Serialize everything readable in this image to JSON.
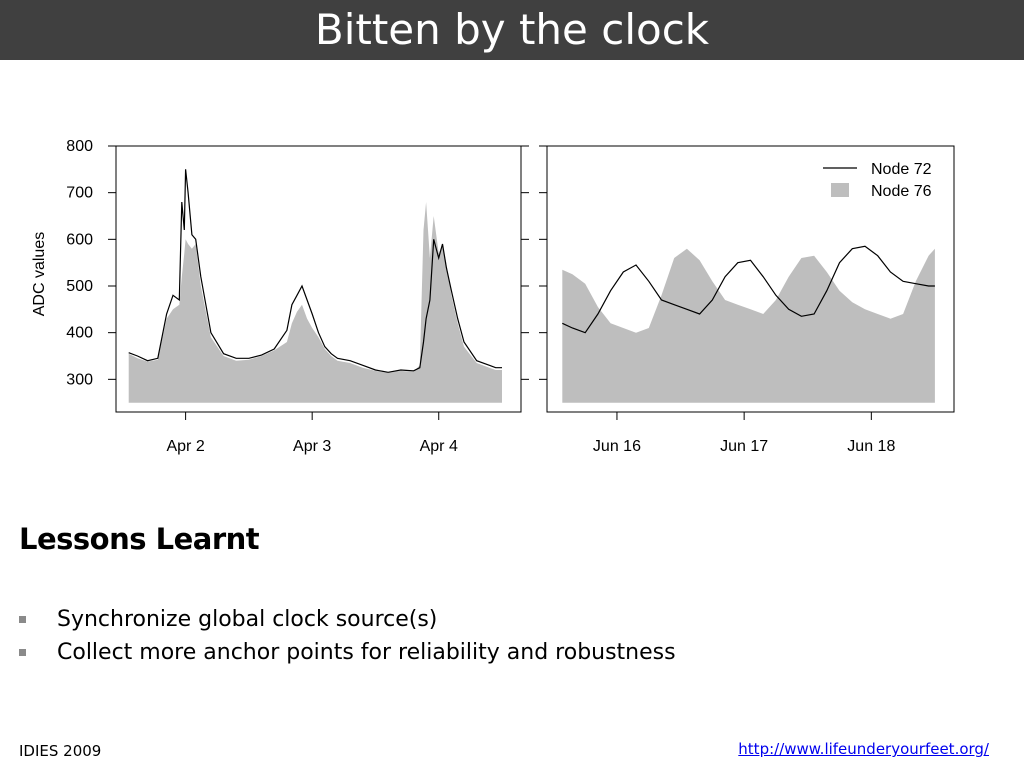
{
  "slide": {
    "title": "Bitten by the clock",
    "section_title": "Lessons Learnt",
    "bullets": [
      "Synchronize global clock source(s)",
      "Collect more anchor points for reliability and robustness"
    ],
    "footer_left": "IDIES 2009",
    "footer_link": "http://www.lifeunderyourfeet.org/"
  },
  "colors": {
    "title_bar": "#404040",
    "node72_line": "#000000",
    "node76_fill": "#bebebe"
  },
  "chart_data": [
    {
      "type": "area",
      "ylabel": "ADC values",
      "xlabel": "",
      "ylim": [
        230,
        800
      ],
      "yticks": [
        300,
        400,
        500,
        600,
        700,
        800
      ],
      "xlim": [
        0.45,
        3.65
      ],
      "xticks": [
        {
          "value": 1,
          "label": "Apr  2"
        },
        {
          "value": 2,
          "label": "Apr  3"
        },
        {
          "value": 3,
          "label": "Apr  4"
        }
      ],
      "series": [
        {
          "name": "Node 72",
          "style": "line",
          "x": [
            0.55,
            0.62,
            0.7,
            0.78,
            0.85,
            0.9,
            0.95,
            0.97,
            0.99,
            1.0,
            1.02,
            1.05,
            1.08,
            1.12,
            1.2,
            1.3,
            1.4,
            1.5,
            1.6,
            1.7,
            1.8,
            1.84,
            1.88,
            1.92,
            1.96,
            2.0,
            2.05,
            2.1,
            2.15,
            2.2,
            2.3,
            2.4,
            2.5,
            2.6,
            2.7,
            2.8,
            2.85,
            2.88,
            2.9,
            2.93,
            2.96,
            3.0,
            3.03,
            3.06,
            3.1,
            3.15,
            3.2,
            3.3,
            3.4,
            3.45,
            3.5
          ],
          "y": [
            357,
            350,
            340,
            345,
            440,
            480,
            470,
            680,
            620,
            750,
            700,
            610,
            600,
            520,
            400,
            355,
            345,
            345,
            352,
            365,
            405,
            460,
            480,
            500,
            470,
            440,
            400,
            370,
            355,
            345,
            340,
            330,
            320,
            315,
            320,
            318,
            325,
            380,
            430,
            470,
            600,
            560,
            590,
            540,
            490,
            430,
            380,
            340,
            330,
            325,
            325
          ]
        },
        {
          "name": "Node 76",
          "style": "area",
          "x": [
            0.55,
            0.62,
            0.7,
            0.78,
            0.85,
            0.9,
            0.95,
            0.97,
            0.99,
            1.0,
            1.02,
            1.05,
            1.08,
            1.12,
            1.2,
            1.3,
            1.4,
            1.5,
            1.6,
            1.7,
            1.8,
            1.84,
            1.88,
            1.92,
            1.96,
            2.0,
            2.05,
            2.1,
            2.15,
            2.2,
            2.3,
            2.4,
            2.5,
            2.6,
            2.7,
            2.8,
            2.85,
            2.88,
            2.9,
            2.93,
            2.96,
            3.0,
            3.03,
            3.06,
            3.1,
            3.15,
            3.2,
            3.3,
            3.4,
            3.45,
            3.5
          ],
          "y": [
            355,
            345,
            338,
            342,
            430,
            450,
            460,
            520,
            570,
            600,
            590,
            580,
            590,
            500,
            390,
            350,
            340,
            342,
            350,
            362,
            380,
            420,
            445,
            460,
            430,
            410,
            390,
            365,
            350,
            340,
            335,
            325,
            318,
            314,
            318,
            316,
            330,
            620,
            680,
            560,
            650,
            570,
            590,
            550,
            480,
            420,
            370,
            335,
            325,
            320,
            320
          ]
        }
      ]
    },
    {
      "type": "area",
      "ylabel": "",
      "xlabel": "",
      "ylim": [
        230,
        800
      ],
      "yticks": [
        300,
        400,
        500,
        600,
        700,
        800
      ],
      "xlim": [
        0.45,
        3.65
      ],
      "xticks": [
        {
          "value": 1,
          "label": "Jun 16"
        },
        {
          "value": 2,
          "label": "Jun 17"
        },
        {
          "value": 3,
          "label": "Jun 18"
        }
      ],
      "series": [
        {
          "name": "Node 72",
          "style": "line",
          "x": [
            0.57,
            0.65,
            0.75,
            0.85,
            0.95,
            1.05,
            1.15,
            1.25,
            1.35,
            1.45,
            1.55,
            1.65,
            1.75,
            1.85,
            1.95,
            2.05,
            2.15,
            2.25,
            2.35,
            2.45,
            2.55,
            2.65,
            2.75,
            2.85,
            2.95,
            3.05,
            3.15,
            3.25,
            3.35,
            3.45,
            3.5
          ],
          "y": [
            420,
            410,
            400,
            440,
            490,
            530,
            545,
            510,
            470,
            460,
            450,
            440,
            470,
            520,
            550,
            555,
            520,
            480,
            450,
            435,
            440,
            490,
            550,
            580,
            585,
            565,
            530,
            510,
            505,
            500,
            500
          ]
        },
        {
          "name": "Node 76",
          "style": "area",
          "x": [
            0.57,
            0.65,
            0.75,
            0.85,
            0.95,
            1.05,
            1.15,
            1.25,
            1.35,
            1.45,
            1.55,
            1.65,
            1.75,
            1.85,
            1.95,
            2.05,
            2.15,
            2.25,
            2.35,
            2.45,
            2.55,
            2.65,
            2.75,
            2.85,
            2.95,
            3.05,
            3.15,
            3.25,
            3.35,
            3.45,
            3.5
          ],
          "y": [
            535,
            525,
            505,
            455,
            420,
            410,
            400,
            410,
            480,
            560,
            580,
            555,
            510,
            470,
            460,
            450,
            440,
            470,
            520,
            560,
            565,
            530,
            490,
            465,
            450,
            440,
            430,
            440,
            510,
            565,
            580
          ]
        }
      ],
      "legend": {
        "placement": "top-right",
        "entries": [
          {
            "label": "Node 72",
            "kind": "line"
          },
          {
            "label": "Node 76",
            "kind": "fill"
          }
        ]
      }
    }
  ]
}
